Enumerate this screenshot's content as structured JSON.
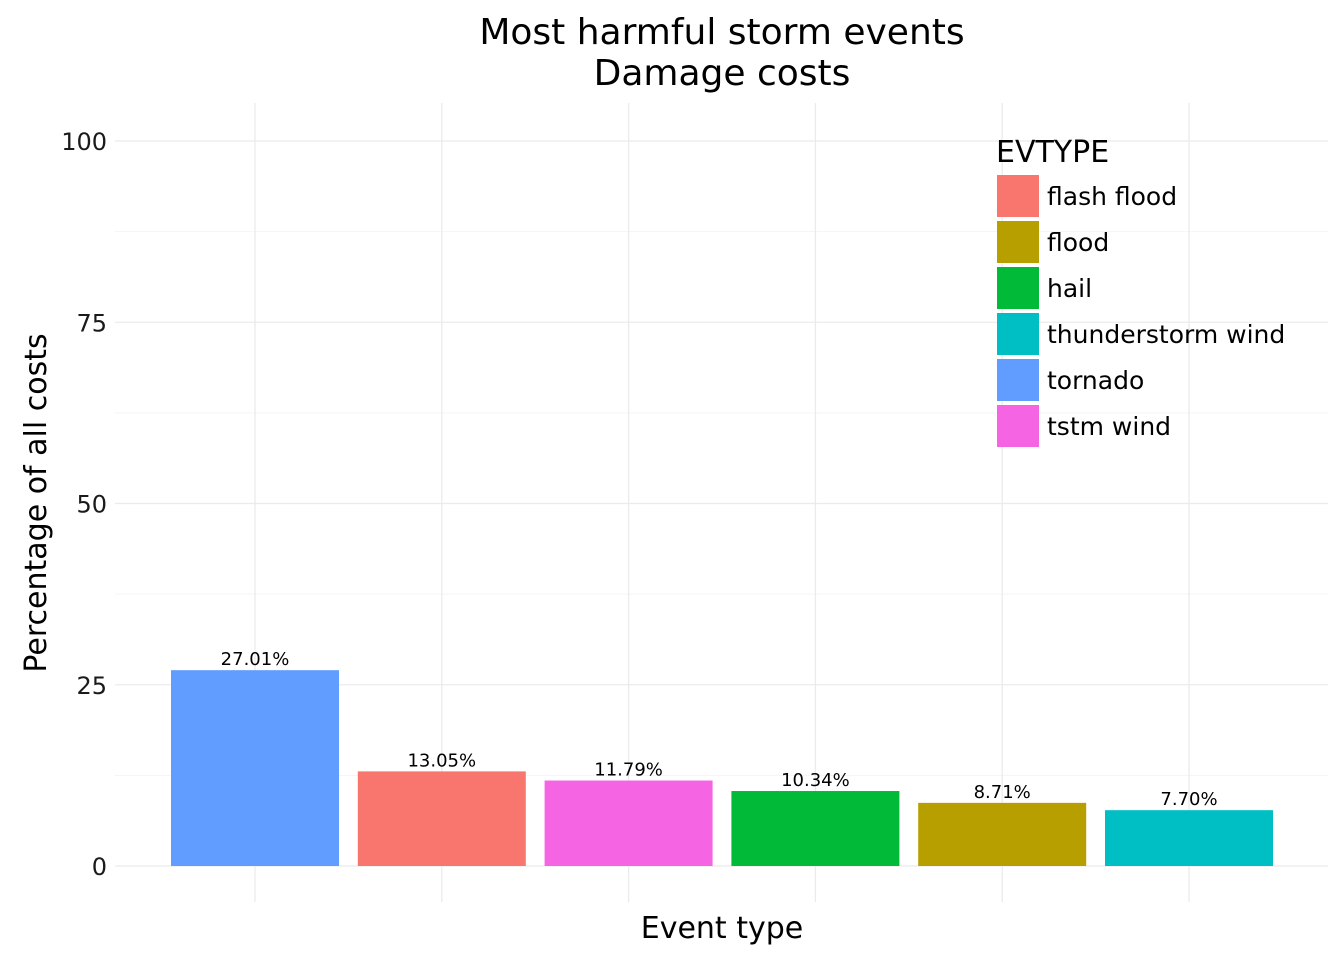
{
  "chart_data": {
    "type": "bar",
    "title": "Most harmful storm events",
    "subtitle": "Damage costs",
    "xlabel": "Event type",
    "ylabel": "Percentage of all costs",
    "ylim": [
      0,
      105
    ],
    "yticks": [
      0,
      25,
      50,
      75,
      100
    ],
    "grid": true,
    "legend": {
      "title": "EVTYPE",
      "placement": "top-right",
      "entries": [
        {
          "name": "flash flood",
          "color": "#F8766D"
        },
        {
          "name": "flood",
          "color": "#B79F00"
        },
        {
          "name": "hail",
          "color": "#00BA38"
        },
        {
          "name": "thunderstorm wind",
          "color": "#00BFC4"
        },
        {
          "name": "tornado",
          "color": "#619CFF"
        },
        {
          "name": "tstm wind",
          "color": "#F564E3"
        }
      ]
    },
    "bars": [
      {
        "category": "tornado",
        "value": 27.01,
        "label": "27.01%",
        "color": "#619CFF"
      },
      {
        "category": "flash flood",
        "value": 13.05,
        "label": "13.05%",
        "color": "#F8766D"
      },
      {
        "category": "tstm wind",
        "value": 11.79,
        "label": "11.79%",
        "color": "#F564E3"
      },
      {
        "category": "hail",
        "value": 10.34,
        "label": "10.34%",
        "color": "#00BA38"
      },
      {
        "category": "flood",
        "value": 8.71,
        "label": "8.71%",
        "color": "#B79F00"
      },
      {
        "category": "thunderstorm wind",
        "value": 7.7,
        "label": "7.70%",
        "color": "#00BFC4"
      }
    ]
  }
}
